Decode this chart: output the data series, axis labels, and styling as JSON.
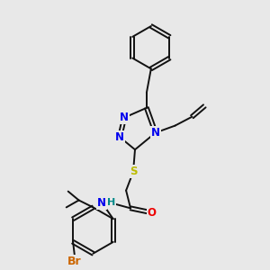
{
  "background_color": "#e8e8e8",
  "fig_size": [
    3.0,
    3.0
  ],
  "dpi": 100,
  "atom_colors": {
    "N": "#0000ee",
    "O": "#ee0000",
    "S": "#bbbb00",
    "Br": "#cc6600",
    "H": "#008888",
    "C": "#111111"
  },
  "bond_color": "#111111",
  "bond_width": 1.4,
  "font_size_atom": 8.5
}
